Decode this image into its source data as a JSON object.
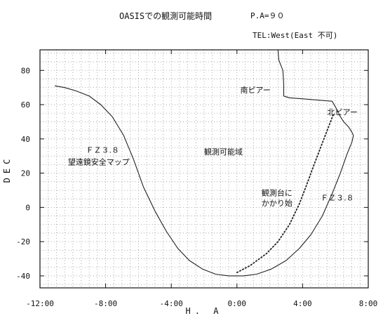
{
  "header": {
    "title": "OASISでの観測可能時間",
    "pa": "P.A=９０",
    "tel": "TEL:West(East 不可)"
  },
  "chart_data": {
    "type": "line",
    "xlabel": "H. A",
    "ylabel": "DEC",
    "xlim": [
      -12,
      8
    ],
    "ylim": [
      -47,
      92
    ],
    "x_tick_labels": [
      {
        "value": -12,
        "label": "-12:00"
      },
      {
        "value": -8,
        "label": "-8:00"
      },
      {
        "value": -4,
        "label": "-4:00"
      },
      {
        "value": 0,
        "label": "0:00"
      },
      {
        "value": 4,
        "label": "4:00"
      },
      {
        "value": 8,
        "label": "8:00"
      }
    ],
    "y_tick_labels": [
      {
        "value": 80,
        "label": "80"
      },
      {
        "value": 60,
        "label": "60"
      },
      {
        "value": 40,
        "label": "40"
      },
      {
        "value": 20,
        "label": "20"
      },
      {
        "value": 0,
        "label": "0"
      },
      {
        "value": -20,
        "label": "-20"
      },
      {
        "value": -40,
        "label": "-40"
      }
    ],
    "grid": true,
    "series": [
      {
        "style": "solid",
        "points": [
          [
            -11.1,
            71
          ],
          [
            -10.5,
            70
          ],
          [
            -9.8,
            68
          ],
          [
            -9.0,
            65
          ],
          [
            -8.3,
            60
          ],
          [
            -7.6,
            53
          ],
          [
            -6.9,
            42
          ],
          [
            -6.3,
            28
          ],
          [
            -5.7,
            12
          ],
          [
            -5.0,
            -2
          ],
          [
            -4.3,
            -14
          ],
          [
            -3.6,
            -24
          ],
          [
            -2.9,
            -31
          ],
          [
            -2.1,
            -36
          ],
          [
            -1.3,
            -39
          ],
          [
            -0.5,
            -40
          ],
          [
            0.4,
            -40
          ],
          [
            1.2,
            -39
          ],
          [
            2.1,
            -36
          ],
          [
            3.0,
            -31
          ],
          [
            3.8,
            -24
          ],
          [
            4.5,
            -16
          ],
          [
            5.2,
            -5
          ],
          [
            5.8,
            8
          ],
          [
            6.3,
            20
          ],
          [
            6.7,
            31
          ],
          [
            7.0,
            38
          ],
          [
            7.1,
            42
          ]
        ]
      },
      {
        "style": "solid",
        "points": [
          [
            2.5,
            92
          ],
          [
            2.55,
            86
          ],
          [
            2.8,
            80
          ],
          [
            2.85,
            72
          ],
          [
            2.85,
            65
          ],
          [
            3.2,
            64
          ],
          [
            4.5,
            63
          ],
          [
            5.8,
            62
          ],
          [
            6.1,
            57
          ],
          [
            6.3,
            53
          ],
          [
            6.5,
            50
          ],
          [
            6.8,
            47
          ],
          [
            7.0,
            44
          ],
          [
            7.1,
            42
          ]
        ]
      },
      {
        "style": "dotted",
        "points": [
          [
            0.0,
            -38
          ],
          [
            0.8,
            -34
          ],
          [
            1.8,
            -27
          ],
          [
            2.5,
            -20
          ],
          [
            3.2,
            -10
          ],
          [
            3.8,
            2
          ],
          [
            4.2,
            12
          ],
          [
            4.7,
            25
          ],
          [
            5.1,
            35
          ],
          [
            5.5,
            45
          ],
          [
            5.9,
            55
          ]
        ]
      }
    ],
    "annotations": [
      {
        "text": "南ピアー",
        "x": 0.2,
        "y": 67
      },
      {
        "text": "北ピアー",
        "x": 5.5,
        "y": 54
      },
      {
        "text": "ＦＺ３.８",
        "x": -9.2,
        "y": 32
      },
      {
        "text": "望遠鏡安全マップ",
        "x": -10.3,
        "y": 25
      },
      {
        "text": "観測可能域",
        "x": -2.0,
        "y": 31
      },
      {
        "text": "観測台に",
        "x": 1.5,
        "y": 7
      },
      {
        "text": "かかり始",
        "x": 1.5,
        "y": 1
      },
      {
        "text": "ＦＺ３.８",
        "x": 5.1,
        "y": 4
      }
    ]
  }
}
